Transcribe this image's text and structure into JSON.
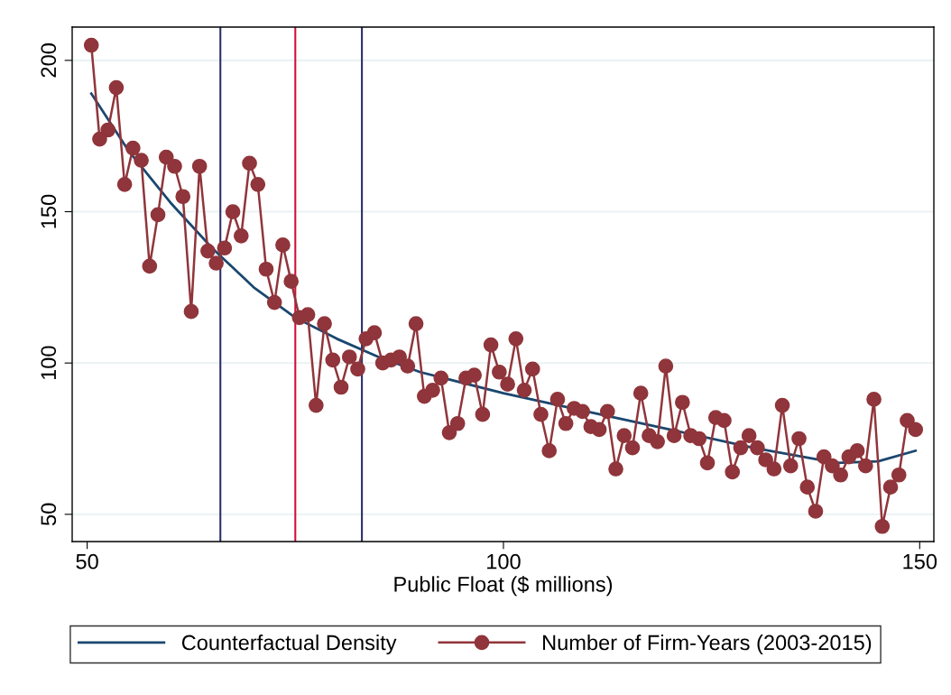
{
  "chart_data": {
    "type": "line",
    "xlabel": "Public Float ($ millions)",
    "xlim": [
      48.2,
      151.7
    ],
    "ylim": [
      41,
      211
    ],
    "xticks": [
      50,
      100,
      150
    ],
    "yticks": [
      50,
      100,
      150,
      200
    ],
    "grid": "y",
    "legend": "bottom",
    "series": [
      {
        "name": "Counterfactual Density",
        "color": "#1a476f",
        "marker": "none",
        "x": [
          50.5,
          55,
          60,
          65,
          70,
          75,
          80,
          85,
          90,
          100,
          110,
          120,
          130,
          140,
          145,
          149.5
        ],
        "values": [
          189,
          170,
          153,
          138,
          125,
          115,
          108,
          102,
          97,
          90,
          84,
          78,
          72,
          67,
          67.5,
          71
        ]
      },
      {
        "name": "Number of Firm-Years (2003-2015)",
        "color": "#90353b",
        "marker": "circle",
        "x": [
          50.5,
          51.5,
          52.5,
          53.5,
          54.5,
          55.5,
          56.5,
          57.5,
          58.5,
          59.5,
          60.5,
          61.5,
          62.5,
          63.5,
          64.5,
          65.5,
          66.5,
          67.5,
          68.5,
          69.5,
          70.5,
          71.5,
          72.5,
          73.5,
          74.5,
          75.5,
          76.5,
          77.5,
          78.5,
          79.5,
          80.5,
          81.5,
          82.5,
          83.5,
          84.5,
          85.5,
          86.5,
          87.5,
          88.5,
          89.5,
          90.5,
          91.5,
          92.5,
          93.5,
          94.5,
          95.5,
          96.5,
          97.5,
          98.5,
          99.5,
          100.5,
          101.5,
          102.5,
          103.5,
          104.5,
          105.5,
          106.5,
          107.5,
          108.5,
          109.5,
          110.5,
          111.5,
          112.5,
          113.5,
          114.5,
          115.5,
          116.5,
          117.5,
          118.5,
          119.5,
          120.5,
          121.5,
          122.5,
          123.5,
          124.5,
          125.5,
          126.5,
          127.5,
          128.5,
          129.5,
          130.5,
          131.5,
          132.5,
          133.5,
          134.5,
          135.5,
          136.5,
          137.5,
          138.5,
          139.5,
          140.5,
          141.5,
          142.5,
          143.5,
          144.5,
          145.5,
          146.5,
          147.5,
          148.5,
          149.5
        ],
        "values": [
          205,
          174,
          177,
          191,
          159,
          171,
          167,
          132,
          149,
          168,
          165,
          155,
          117,
          165,
          137,
          133,
          138,
          150,
          142,
          166,
          159,
          131,
          120,
          139,
          127,
          115,
          116,
          86,
          113,
          101,
          92,
          102,
          98,
          108,
          110,
          100,
          101,
          102,
          99,
          113,
          89,
          91,
          95,
          77,
          80,
          95,
          96,
          83,
          106,
          97,
          93,
          108,
          91,
          98,
          83,
          71,
          88,
          80,
          85,
          84,
          79,
          78,
          84,
          65,
          76,
          72,
          90,
          76,
          74,
          99,
          76,
          87,
          76,
          75,
          67,
          82,
          81,
          64,
          72,
          76,
          72,
          68,
          65,
          86,
          66,
          75,
          59,
          51,
          69,
          66,
          63,
          69,
          71,
          66,
          88,
          46,
          59,
          63,
          81,
          78
        ]
      }
    ],
    "ref_lines": [
      {
        "axis": "x",
        "value": 66,
        "color": "#2b2f6b"
      },
      {
        "axis": "x",
        "value": 75,
        "color": "#d0103a"
      },
      {
        "axis": "x",
        "value": 83,
        "color": "#2b2f6b"
      }
    ]
  }
}
